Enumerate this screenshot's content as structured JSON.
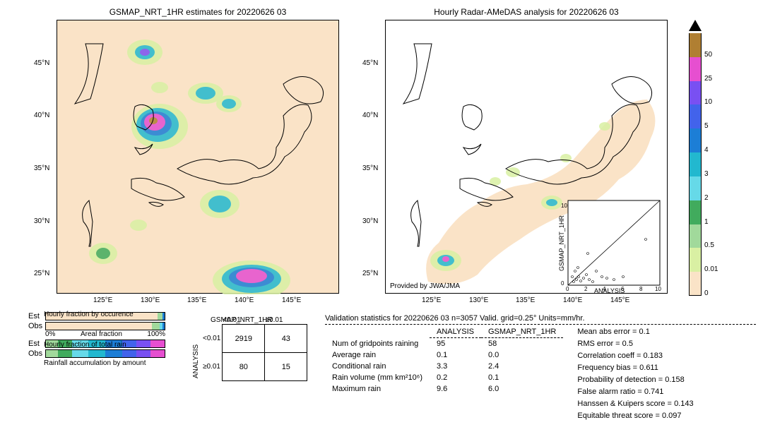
{
  "maps": {
    "left": {
      "title": "GSMAP_NRT_1HR estimates for 20220626 03",
      "xticks": [
        "125°E",
        "130°E",
        "135°E",
        "140°E",
        "145°E"
      ],
      "yticks": [
        "25°N",
        "30°N",
        "35°N",
        "40°N",
        "45°N"
      ],
      "xlim": [
        120,
        150
      ],
      "ylim": [
        22,
        48
      ],
      "bg_color": "#fae3c7"
    },
    "right": {
      "title": "Hourly Radar-AMeDAS analysis for 20220626 03",
      "xticks": [
        "125°E",
        "130°E",
        "135°E",
        "140°E",
        "145°E"
      ],
      "yticks": [
        "25°N",
        "30°N",
        "35°N",
        "40°N",
        "45°N"
      ],
      "attribution": "Provided by JWA/JMA",
      "scatter": {
        "xlabel": "ANALYSIS",
        "ylabel": "GSMAP_NRT_1HR",
        "xlim": [
          0,
          10
        ],
        "ylim": [
          0,
          10
        ],
        "xticks": [
          0,
          2,
          4,
          6,
          8,
          10
        ],
        "yticks": [
          0,
          2,
          4,
          6,
          8,
          10
        ]
      }
    }
  },
  "colorbar": {
    "levels": [
      0,
      0.01,
      0.5,
      1,
      2,
      3,
      4,
      5,
      10,
      25,
      50
    ],
    "colors": [
      "#fae3c7",
      "#d9f0a3",
      "#a1d99b",
      "#41ab5d",
      "#66d9e8",
      "#22b8cf",
      "#1c7ed6",
      "#4263eb",
      "#7950f2",
      "#e64fd0",
      "#b07f32"
    ],
    "tick_labels": [
      "0",
      "0.01",
      "0.5",
      "1",
      "2",
      "3",
      "4",
      "5",
      "10",
      "25",
      "50"
    ]
  },
  "fraction_bars": {
    "occurrence": {
      "title": "Hourly fraction by occurence",
      "est_segs": [
        {
          "c": "#fae3c7",
          "w": 94
        },
        {
          "c": "#a1d99b",
          "w": 4
        },
        {
          "c": "#1c7ed6",
          "w": 2
        }
      ],
      "obs_segs": [
        {
          "c": "#fae3c7",
          "w": 89
        },
        {
          "c": "#a1d99b",
          "w": 7
        },
        {
          "c": "#66d9e8",
          "w": 2
        },
        {
          "c": "#1c7ed6",
          "w": 2
        }
      ]
    },
    "total_rain": {
      "title": "Hourly fraction of total rain",
      "est_segs": [
        {
          "c": "#a1d99b",
          "w": 10
        },
        {
          "c": "#41ab5d",
          "w": 12
        },
        {
          "c": "#66d9e8",
          "w": 14
        },
        {
          "c": "#22b8cf",
          "w": 14
        },
        {
          "c": "#1c7ed6",
          "w": 14
        },
        {
          "c": "#4263eb",
          "w": 12
        },
        {
          "c": "#7950f2",
          "w": 12
        },
        {
          "c": "#e64fd0",
          "w": 12
        }
      ],
      "obs_segs": [
        {
          "c": "#a1d99b",
          "w": 10
        },
        {
          "c": "#41ab5d",
          "w": 12
        },
        {
          "c": "#66d9e8",
          "w": 14
        },
        {
          "c": "#22b8cf",
          "w": 14
        },
        {
          "c": "#1c7ed6",
          "w": 14
        },
        {
          "c": "#4263eb",
          "w": 12
        },
        {
          "c": "#7950f2",
          "w": 12
        },
        {
          "c": "#e64fd0",
          "w": 12
        }
      ]
    },
    "est_label": "Est",
    "obs_label": "Obs",
    "xaxis": {
      "left": "0%",
      "mid": "Areal fraction",
      "right": "100%"
    },
    "accum_label": "Rainfall accumulation by amount"
  },
  "contingency": {
    "col_header": "GSMAP_NRT_1HR",
    "row_header": "ANALYSIS",
    "col_labels": [
      "<0.01",
      "≥0.01"
    ],
    "row_labels": [
      "<0.01",
      "≥0.01"
    ],
    "cells": [
      [
        "2919",
        "43"
      ],
      [
        "80",
        "15"
      ]
    ]
  },
  "validation": {
    "title": "Validation statistics for 20220626 03  n=3057 Valid. grid=0.25°  Units=mm/hr.",
    "col1": "ANALYSIS",
    "col2": "GSMAP_NRT_1HR",
    "rows": [
      {
        "label": "Num of gridpoints raining",
        "a": "95",
        "g": "58"
      },
      {
        "label": "Average rain",
        "a": "0.1",
        "g": "0.0"
      },
      {
        "label": "Conditional rain",
        "a": "3.3",
        "g": "2.4"
      },
      {
        "label": "Rain volume (mm km²10⁶)",
        "a": "0.2",
        "g": "0.1"
      },
      {
        "label": "Maximum rain",
        "a": "9.6",
        "g": "6.0"
      }
    ],
    "scores": [
      {
        "label": "Mean abs error =",
        "v": "0.1"
      },
      {
        "label": "RMS error =",
        "v": "0.5"
      },
      {
        "label": "Correlation coeff =",
        "v": "0.183"
      },
      {
        "label": "Frequency bias =",
        "v": "0.611"
      },
      {
        "label": "Probability of detection =",
        "v": "0.158"
      },
      {
        "label": "False alarm ratio =",
        "v": "0.741"
      },
      {
        "label": "Hanssen & Kuipers score =",
        "v": "0.143"
      },
      {
        "label": "Equitable threat score =",
        "v": "0.097"
      }
    ]
  }
}
